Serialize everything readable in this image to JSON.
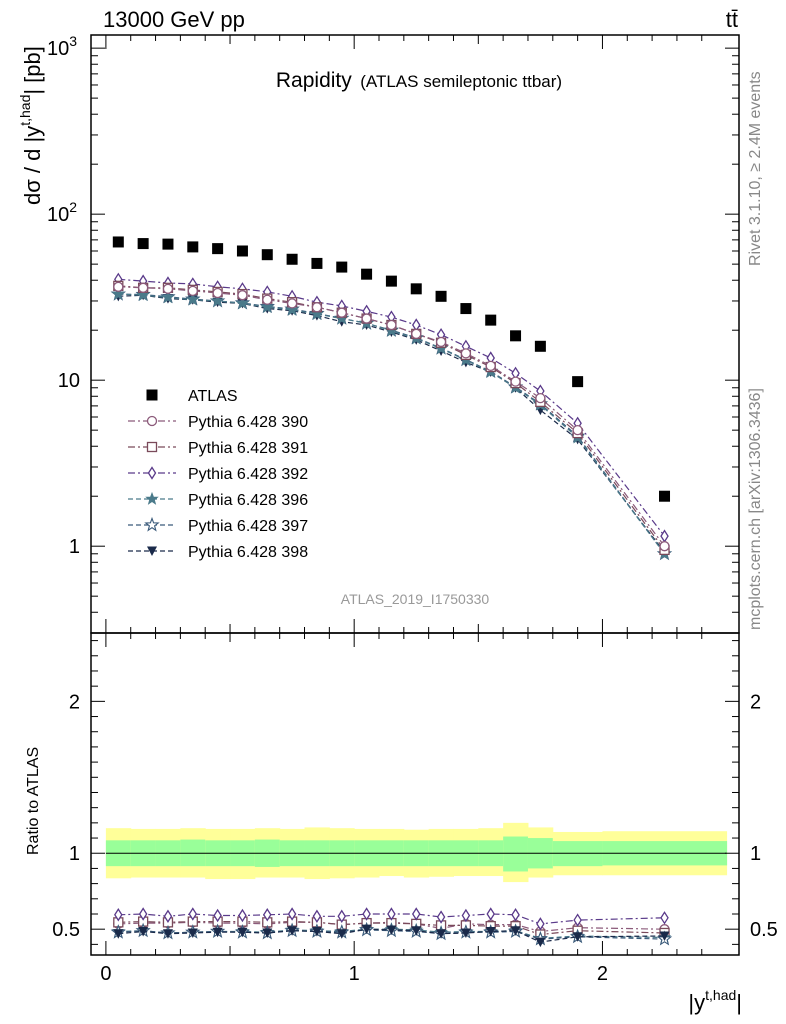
{
  "header": {
    "left": "13000 GeV pp",
    "right": "tt̄"
  },
  "side": {
    "rivet": "Rivet 3.1.10, ≥ 2.4M events",
    "mcplots": "mcplots.cern.ch [arXiv:1306.3436]"
  },
  "chart_data": [
    {
      "type": "scatter",
      "panel": "main",
      "title": "Rapidity",
      "subtitle": "(ATLAS semileptonic ttbar)",
      "ylabel": "dσ / d |y^{t,had}| [pb]",
      "analysis_label": "ATLAS_2019_I1750330",
      "yscale": "log",
      "ylim": [
        0.3,
        1200
      ],
      "xlim": [
        -0.06,
        2.55
      ],
      "ytick_labels": {
        "1": "1",
        "10": "10",
        "100": "10",
        "1000": "10"
      },
      "ytick_exponents": {
        "100": "2",
        "1000": "3"
      },
      "legend_placement": "bottom-left",
      "x": [
        0.05,
        0.15,
        0.25,
        0.35,
        0.45,
        0.55,
        0.65,
        0.75,
        0.85,
        0.95,
        1.05,
        1.15,
        1.25,
        1.35,
        1.45,
        1.55,
        1.65,
        1.75,
        1.9,
        2.25
      ],
      "series": [
        {
          "name": "ATLAS",
          "color": "#000000",
          "marker": "square",
          "line": "none",
          "values": [
            68,
            66.5,
            66,
            63.5,
            62,
            60,
            57,
            53.5,
            50.5,
            48,
            43.5,
            39.5,
            35.5,
            32,
            27,
            23,
            18.5,
            16,
            9.8,
            2.0
          ]
        },
        {
          "name": "Pythia 6.428 390",
          "color": "#8b5a7a",
          "marker": "circle",
          "line": "dashdot",
          "values": [
            36.5,
            36,
            35.5,
            34.5,
            33.5,
            32.5,
            30.5,
            29,
            27.5,
            25.5,
            23.5,
            21.5,
            19,
            17,
            14.5,
            12.2,
            9.8,
            7.8,
            5.0,
            1.0
          ]
        },
        {
          "name": "Pythia 6.428 391",
          "color": "#7a4a5a",
          "marker": "square-open",
          "line": "dashdot",
          "values": [
            37,
            36,
            36,
            35,
            34,
            33,
            31,
            29.5,
            27.5,
            25.5,
            23.5,
            21.5,
            19,
            16.8,
            14.2,
            12.0,
            9.6,
            7.4,
            4.8,
            0.95
          ]
        },
        {
          "name": "Pythia 6.428 392",
          "color": "#5a3a8a",
          "marker": "diamond-open",
          "line": "dashdot",
          "values": [
            40.5,
            39.5,
            38.5,
            38,
            36.5,
            35.5,
            34,
            32,
            29.5,
            28,
            26,
            24,
            21.5,
            18.8,
            16,
            13.6,
            11,
            8.6,
            5.5,
            1.15
          ]
        },
        {
          "name": "Pythia 6.428 396",
          "color": "#4a7a8a",
          "marker": "star-filled",
          "line": "dashed",
          "values": [
            33,
            32.5,
            31.5,
            30.5,
            30,
            29,
            27.5,
            26.5,
            25,
            23.5,
            22,
            19.8,
            17.8,
            15.5,
            13.2,
            11.2,
            9.0,
            7.1,
            4.5,
            0.9
          ]
        },
        {
          "name": "Pythia 6.428 397",
          "color": "#3a5a7a",
          "marker": "star-open",
          "line": "dashed",
          "values": [
            33,
            32.8,
            31.8,
            30.8,
            30,
            29.2,
            27.8,
            26.8,
            25.2,
            23.6,
            22,
            20,
            18,
            15.6,
            13.3,
            11.3,
            9.1,
            7.2,
            4.6,
            0.9
          ]
        },
        {
          "name": "Pythia 6.428 398",
          "color": "#1a2a4a",
          "marker": "triangle-down",
          "line": "dashed",
          "values": [
            32,
            32.5,
            31,
            30.5,
            29.5,
            29,
            27,
            26.2,
            24.5,
            22.5,
            21.5,
            19.5,
            17.5,
            15,
            12.8,
            11.2,
            9.0,
            6.6,
            4.4,
            0.92
          ]
        }
      ]
    },
    {
      "type": "scatter",
      "panel": "ratio",
      "ylabel": "Ratio to ATLAS",
      "xlabel": "|y^{t,had}|",
      "ylim": [
        0.33,
        2.45
      ],
      "xlim": [
        -0.06,
        2.55
      ],
      "yticks": [
        0.5,
        1,
        2
      ],
      "ytick_labels": [
        "0.5",
        "1",
        "2"
      ],
      "xticks": [
        0,
        1,
        2
      ],
      "xtick_labels": [
        "0",
        "1",
        "2"
      ],
      "band_colors": {
        "outer": "#ffff99",
        "inner": "#99ff99"
      },
      "bins": [
        [
          0.0,
          0.1
        ],
        [
          0.1,
          0.2
        ],
        [
          0.2,
          0.3
        ],
        [
          0.3,
          0.4
        ],
        [
          0.4,
          0.5
        ],
        [
          0.5,
          0.6
        ],
        [
          0.6,
          0.7
        ],
        [
          0.7,
          0.8
        ],
        [
          0.8,
          0.9
        ],
        [
          0.9,
          1.0
        ],
        [
          1.0,
          1.1
        ],
        [
          1.1,
          1.2
        ],
        [
          1.2,
          1.3
        ],
        [
          1.3,
          1.4
        ],
        [
          1.4,
          1.5
        ],
        [
          1.5,
          1.6
        ],
        [
          1.6,
          1.7
        ],
        [
          1.7,
          1.8
        ],
        [
          1.8,
          2.0
        ],
        [
          2.0,
          2.5
        ]
      ],
      "band_outer": [
        [
          0.835,
          1.165
        ],
        [
          0.84,
          1.16
        ],
        [
          0.84,
          1.16
        ],
        [
          0.84,
          1.165
        ],
        [
          0.83,
          1.16
        ],
        [
          0.83,
          1.16
        ],
        [
          0.84,
          1.165
        ],
        [
          0.84,
          1.16
        ],
        [
          0.83,
          1.17
        ],
        [
          0.835,
          1.165
        ],
        [
          0.84,
          1.16
        ],
        [
          0.85,
          1.16
        ],
        [
          0.84,
          1.155
        ],
        [
          0.845,
          1.16
        ],
        [
          0.85,
          1.16
        ],
        [
          0.85,
          1.165
        ],
        [
          0.81,
          1.2
        ],
        [
          0.84,
          1.17
        ],
        [
          0.855,
          1.14
        ],
        [
          0.855,
          1.145
        ]
      ],
      "band_inner": [
        [
          0.915,
          1.085
        ],
        [
          0.915,
          1.085
        ],
        [
          0.915,
          1.085
        ],
        [
          0.915,
          1.09
        ],
        [
          0.915,
          1.085
        ],
        [
          0.915,
          1.085
        ],
        [
          0.91,
          1.09
        ],
        [
          0.915,
          1.085
        ],
        [
          0.915,
          1.085
        ],
        [
          0.915,
          1.085
        ],
        [
          0.915,
          1.085
        ],
        [
          0.915,
          1.085
        ],
        [
          0.915,
          1.085
        ],
        [
          0.915,
          1.085
        ],
        [
          0.915,
          1.085
        ],
        [
          0.915,
          1.085
        ],
        [
          0.88,
          1.11
        ],
        [
          0.9,
          1.1
        ],
        [
          0.915,
          1.08
        ],
        [
          0.92,
          1.08
        ]
      ],
      "series": [
        {
          "name": "Pythia 6.428 390",
          "values": [
            0.535,
            0.54,
            0.54,
            0.545,
            0.54,
            0.54,
            0.535,
            0.545,
            0.545,
            0.53,
            0.54,
            0.545,
            0.535,
            0.505,
            0.535,
            0.53,
            0.53,
            0.485,
            0.51,
            0.5
          ]
        },
        {
          "name": "Pythia 6.428 391",
          "values": [
            0.545,
            0.55,
            0.545,
            0.55,
            0.55,
            0.55,
            0.545,
            0.55,
            0.545,
            0.53,
            0.54,
            0.54,
            0.535,
            0.525,
            0.525,
            0.52,
            0.52,
            0.465,
            0.49,
            0.475
          ]
        },
        {
          "name": "Pythia 6.428 392",
          "values": [
            0.595,
            0.6,
            0.585,
            0.6,
            0.59,
            0.59,
            0.595,
            0.6,
            0.585,
            0.585,
            0.6,
            0.6,
            0.6,
            0.58,
            0.59,
            0.6,
            0.595,
            0.535,
            0.56,
            0.575
          ]
        },
        {
          "name": "Pythia 6.428 396",
          "values": [
            0.485,
            0.49,
            0.475,
            0.48,
            0.485,
            0.485,
            0.48,
            0.495,
            0.49,
            0.485,
            0.5,
            0.5,
            0.495,
            0.48,
            0.485,
            0.485,
            0.49,
            0.44,
            0.455,
            0.445
          ]
        },
        {
          "name": "Pythia 6.428 397",
          "values": [
            0.48,
            0.49,
            0.475,
            0.48,
            0.485,
            0.48,
            0.475,
            0.49,
            0.485,
            0.48,
            0.495,
            0.49,
            0.485,
            0.47,
            0.48,
            0.48,
            0.485,
            0.435,
            0.45,
            0.435
          ]
        },
        {
          "name": "Pythia 6.428 398",
          "values": [
            0.47,
            0.485,
            0.47,
            0.475,
            0.48,
            0.48,
            0.475,
            0.49,
            0.485,
            0.47,
            0.5,
            0.495,
            0.49,
            0.47,
            0.475,
            0.485,
            0.49,
            0.415,
            0.45,
            0.455
          ]
        }
      ]
    }
  ]
}
